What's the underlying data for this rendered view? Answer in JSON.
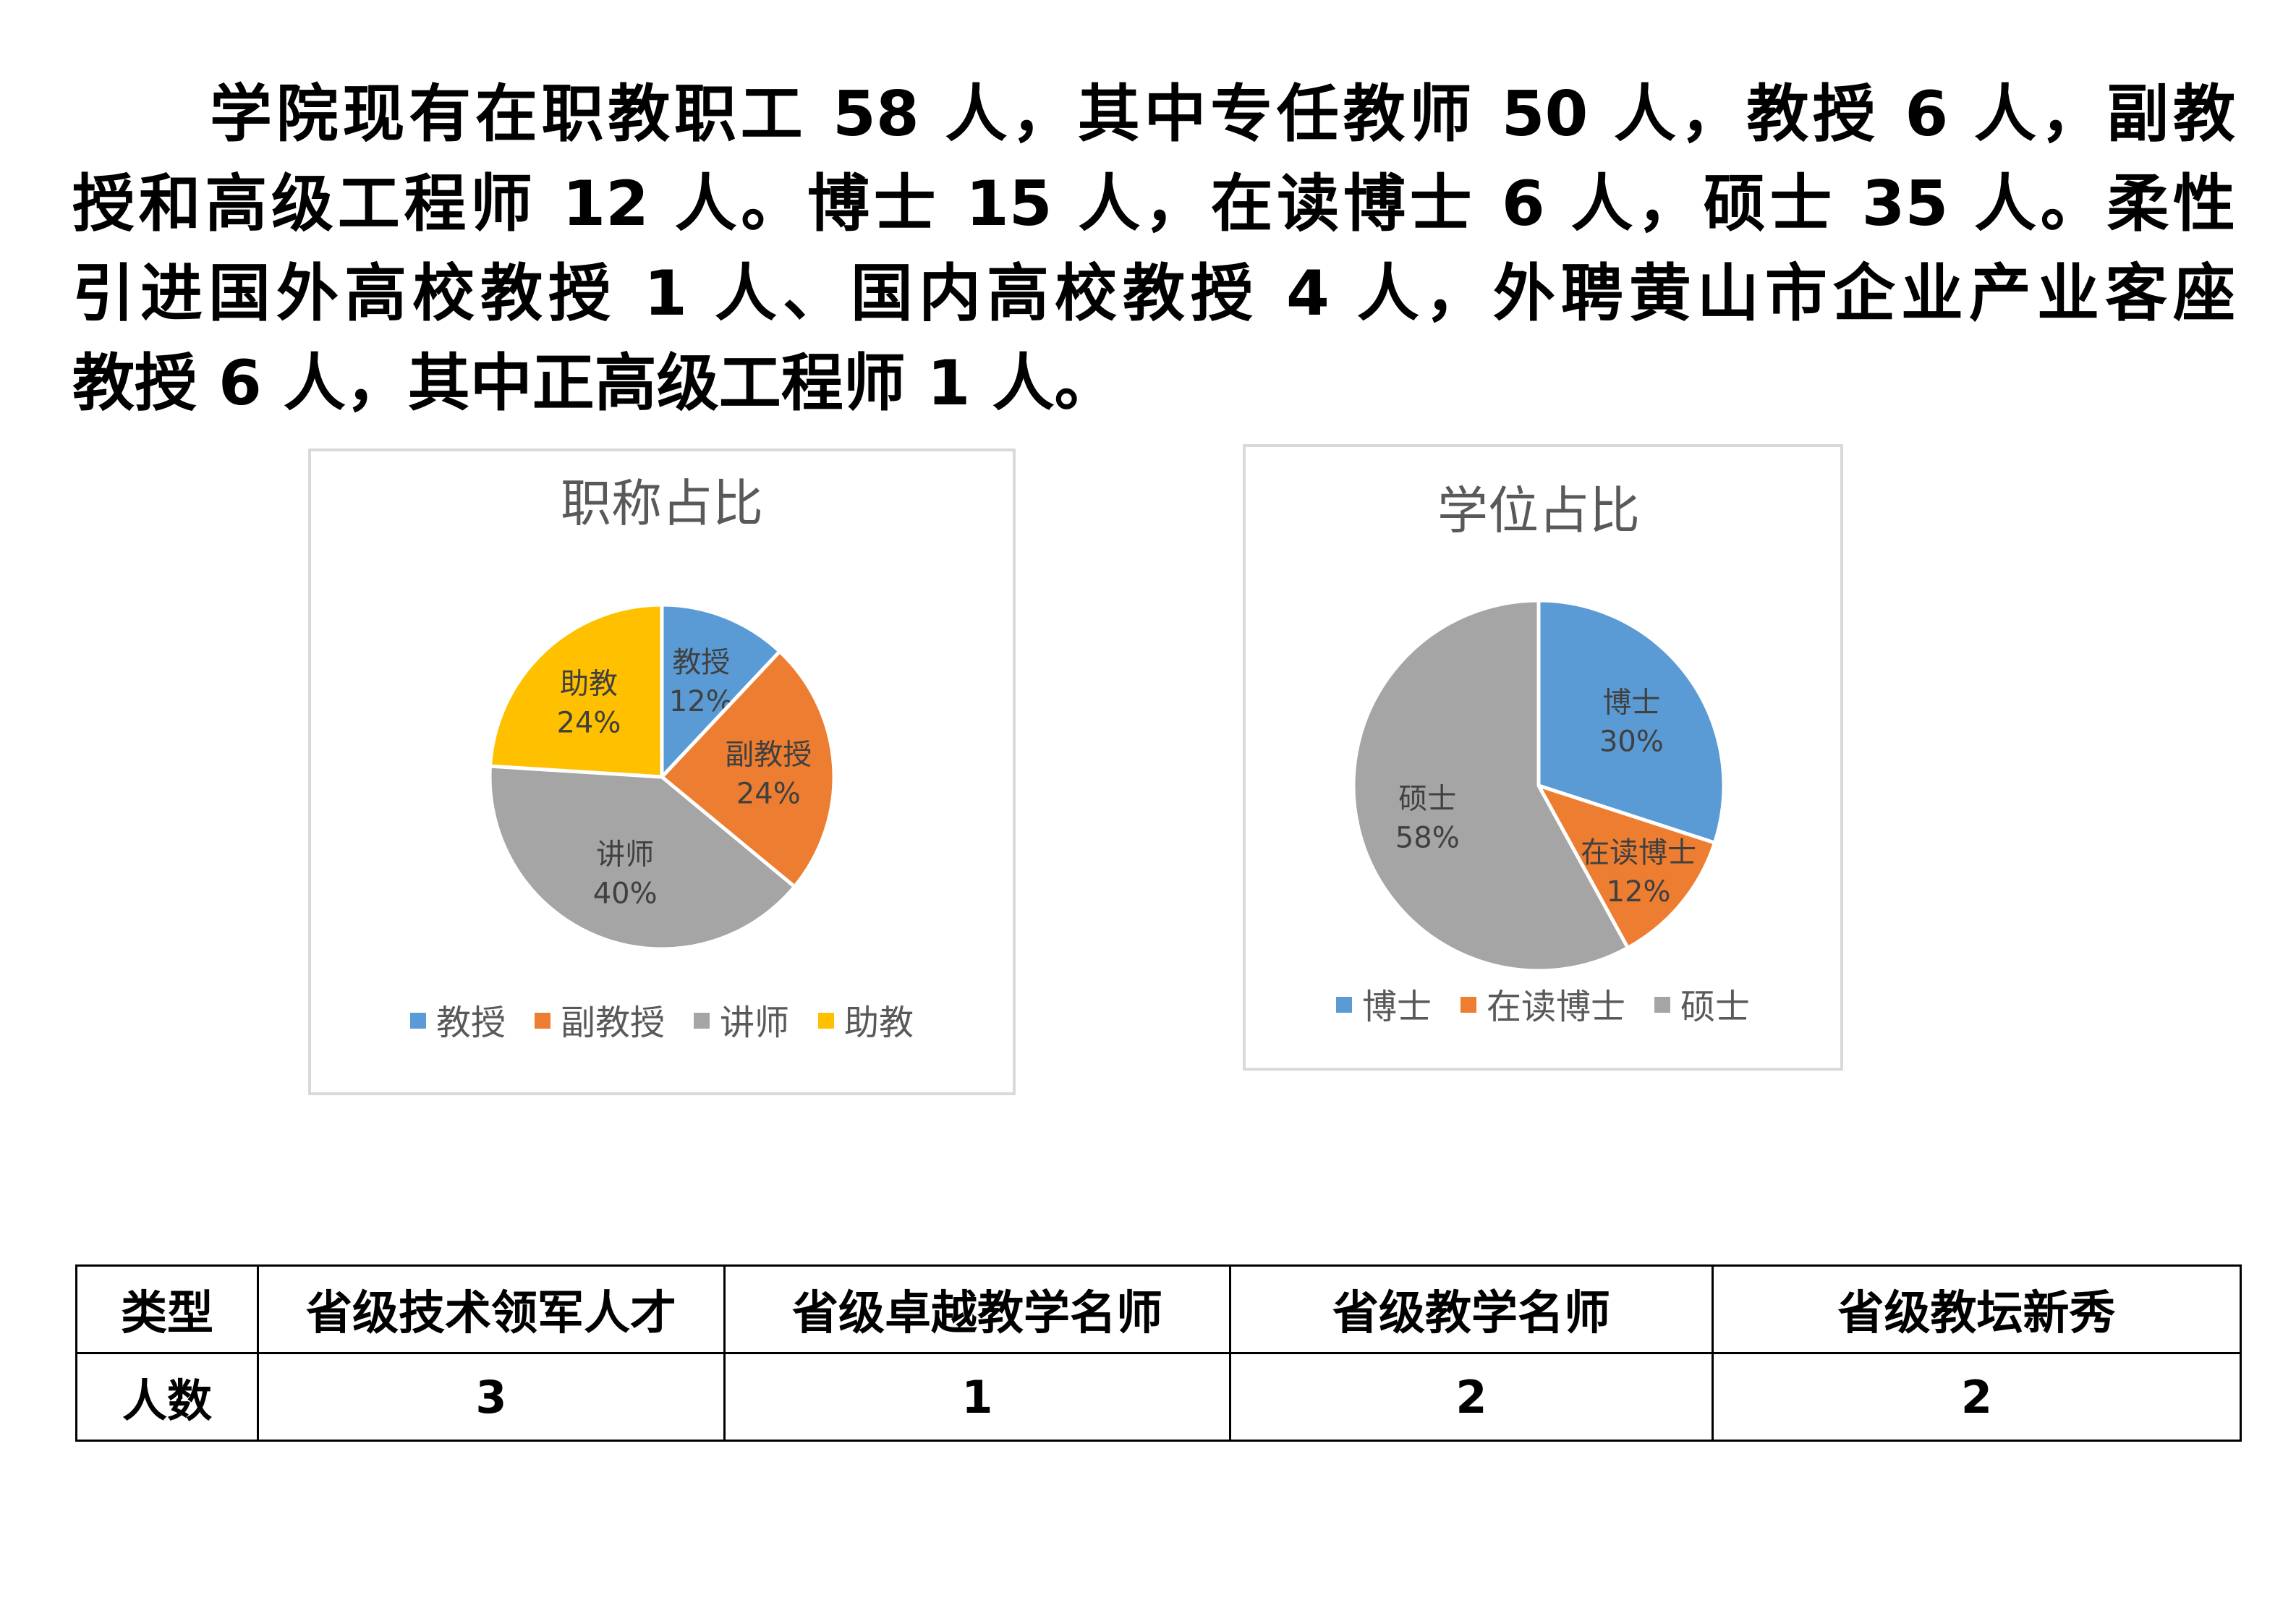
{
  "intro": {
    "lines": [
      "学院现有在职教职工 58 人，其中专任教师 50 人，教授 6 人，副教",
      "授和高级工程师 12 人。博士 15 人，在读博士 6 人，硕士 35 人。柔性",
      "引进国外高校教授 1 人、国内高校教授 4 人，外聘黄山市企业产业客座",
      "教授 6 人，其中正高级工程师 1 人。"
    ]
  },
  "chart_data": [
    {
      "type": "pie",
      "title": "职称占比",
      "categories": [
        "教授",
        "副教授",
        "讲师",
        "助教"
      ],
      "values": [
        12,
        24,
        40,
        24
      ],
      "labels": [
        "12%",
        "24%",
        "40%",
        "24%"
      ],
      "colors": [
        "#5b9bd5",
        "#ed7d31",
        "#a5a5a5",
        "#ffc000"
      ],
      "legend": "bottom"
    },
    {
      "type": "pie",
      "title": "学位占比",
      "categories": [
        "博士",
        "在读博士",
        "硕士"
      ],
      "values": [
        30,
        12,
        58
      ],
      "labels": [
        "30%",
        "12%",
        "58%"
      ],
      "colors": [
        "#5b9bd5",
        "#ed7d31",
        "#a5a5a5"
      ],
      "legend": "bottom"
    }
  ],
  "table": {
    "header": [
      "类型",
      "省级技术领军人才",
      "省级卓越教学名师",
      "省级教学名师",
      "省级教坛新秀"
    ],
    "row": [
      "人数",
      "3",
      "1",
      "2",
      "2"
    ]
  }
}
